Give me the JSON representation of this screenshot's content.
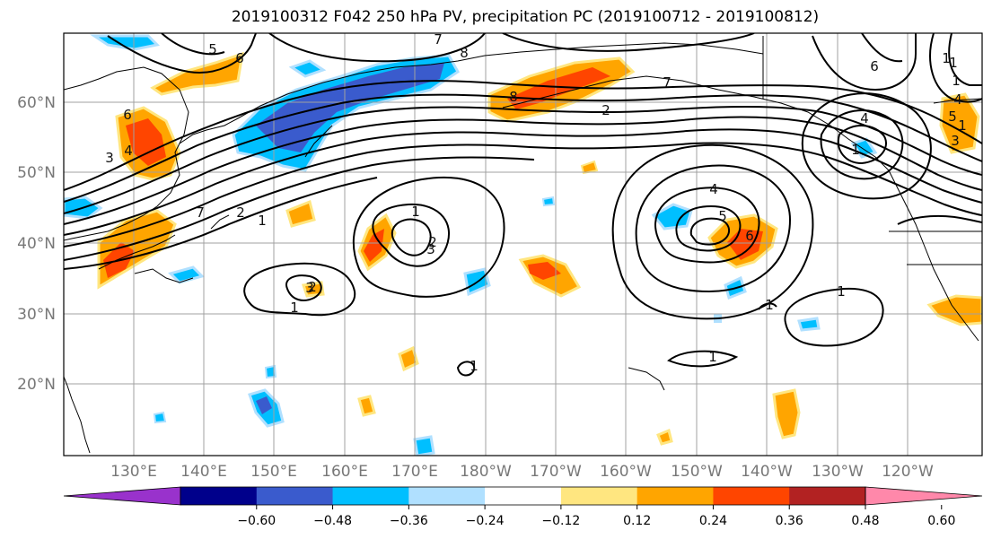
{
  "title": "2019100312 F042 250 hPa PV, precipitation PC (2019100712 - 2019100812)",
  "map": {
    "lon_labels": [
      "130°E",
      "140°E",
      "150°E",
      "160°E",
      "170°E",
      "180°W",
      "170°W",
      "160°W",
      "150°W",
      "140°W",
      "130°W",
      "120°W"
    ],
    "lat_labels": [
      "60°N",
      "50°N",
      "40°N",
      "30°N",
      "20°N"
    ],
    "contour_labels": [
      "5",
      "6",
      "7",
      "8",
      "6",
      "3",
      "4",
      "8",
      "2",
      "7",
      "1",
      "7",
      "2",
      "1",
      "2",
      "3",
      "1",
      "4",
      "5",
      "6",
      "1",
      "1",
      "4",
      "6",
      "1",
      "3",
      "4",
      "5",
      "2",
      "3",
      "1",
      "1",
      "1",
      "1",
      "1",
      "1"
    ]
  },
  "colorbar": {
    "ticks": [
      "−0.60",
      "−0.48",
      "−0.36",
      "−0.24",
      "−0.12",
      "0.12",
      "0.24",
      "0.36",
      "0.48",
      "0.60"
    ],
    "colors": [
      "#9932cc",
      "#00008b",
      "#3a5bcd",
      "#00bfff",
      "#b0e0ff",
      "#ffffff",
      "#ffe680",
      "#ffa500",
      "#ff4500",
      "#b22222",
      "#ff88aa"
    ]
  }
}
